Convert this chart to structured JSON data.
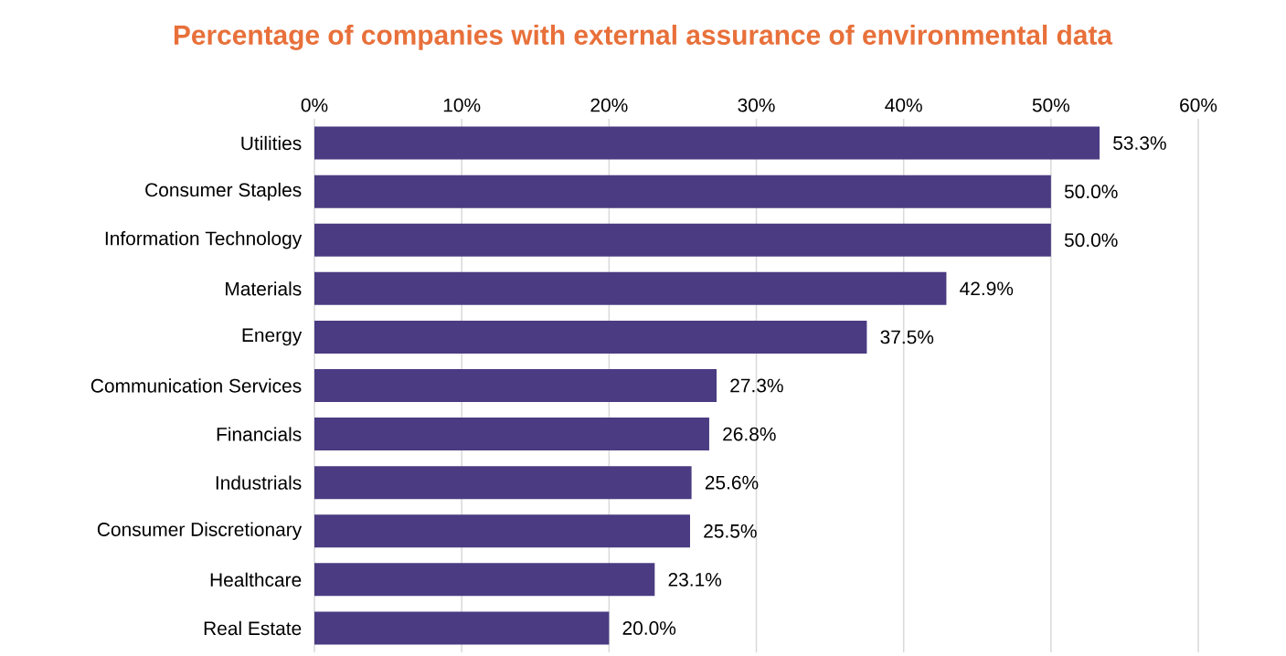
{
  "chart_data": {
    "type": "bar",
    "orientation": "horizontal",
    "title": "Percentage of companies with external assurance of environmental data",
    "categories": [
      "Utilities",
      "Consumer Staples",
      "Information Technology",
      "Materials",
      "Energy",
      "Communication Services",
      "Financials",
      "Industrials",
      "Consumer Discretionary",
      "Healthcare",
      "Real Estate"
    ],
    "values": [
      53.3,
      50.0,
      50.0,
      42.9,
      37.5,
      27.3,
      26.8,
      25.6,
      25.5,
      23.1,
      20.0
    ],
    "value_labels": [
      "53.3%",
      "50.0%",
      "50.0%",
      "42.9%",
      "37.5%",
      "27.3%",
      "26.8%",
      "25.6%",
      "25.5%",
      "23.1%",
      "20.0%"
    ],
    "color": "#4b3b82",
    "xlim": [
      0,
      60
    ],
    "xticks": [
      {
        "value": 0,
        "label": "0%"
      },
      {
        "value": 10,
        "label": "10%"
      },
      {
        "value": 20,
        "label": "20%"
      },
      {
        "value": 30,
        "label": "30%"
      },
      {
        "value": 40,
        "label": "40%"
      },
      {
        "value": 50,
        "label": "50%"
      },
      {
        "value": 60,
        "label": "60%"
      }
    ],
    "grid": "x"
  }
}
